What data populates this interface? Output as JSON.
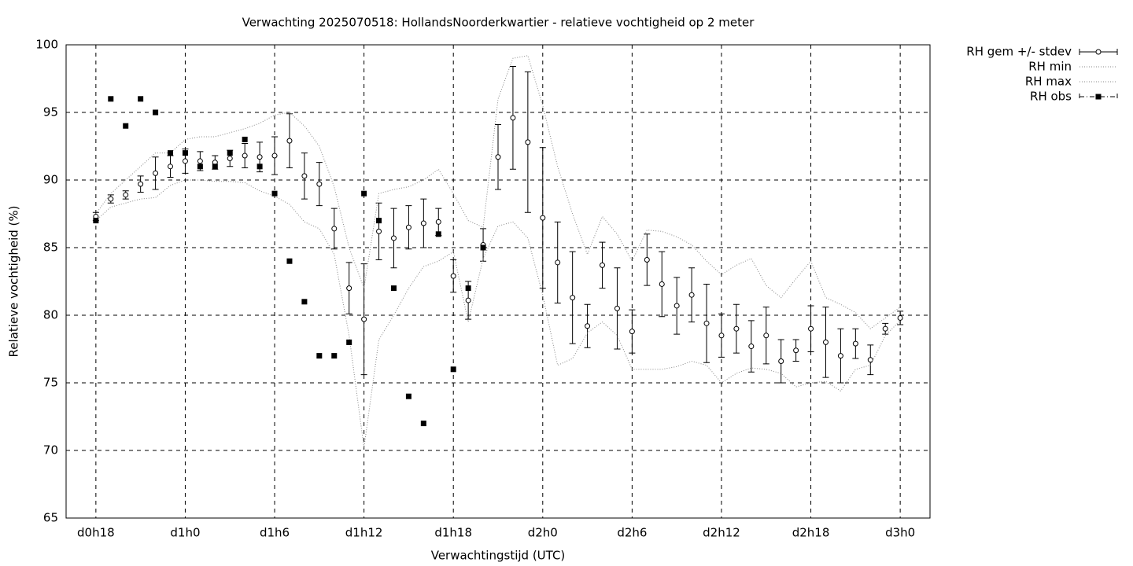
{
  "chart_data": {
    "type": "errorbar",
    "title": "Verwachting 2025070518: HollandsNoorderkwartier - relatieve vochtigheid op 2 meter",
    "x_label": "Verwachtingstijd (UTC)",
    "y_label": "Relatieve vochtigheid (%)",
    "x": [
      18,
      19,
      20,
      21,
      22,
      23,
      24,
      25,
      26,
      27,
      28,
      29,
      30,
      31,
      32,
      33,
      34,
      35,
      36,
      37,
      38,
      39,
      40,
      41,
      42,
      43,
      44,
      45,
      46,
      47,
      48,
      49,
      50,
      51,
      52,
      53,
      54,
      55,
      56,
      57,
      58,
      59,
      60,
      61,
      62,
      63,
      64,
      65,
      66,
      67,
      68,
      69,
      70,
      71,
      72
    ],
    "xlim": [
      16,
      74
    ],
    "xticks": [
      {
        "value": 18,
        "label": "d0h18"
      },
      {
        "value": 24,
        "label": "d1h0"
      },
      {
        "value": 30,
        "label": "d1h6"
      },
      {
        "value": 36,
        "label": "d1h12"
      },
      {
        "value": 42,
        "label": "d1h18"
      },
      {
        "value": 48,
        "label": "d2h0"
      },
      {
        "value": 54,
        "label": "d2h6"
      },
      {
        "value": 60,
        "label": "d2h12"
      },
      {
        "value": 66,
        "label": "d2h18"
      },
      {
        "value": 72,
        "label": "d3h0"
      }
    ],
    "ylim": [
      65,
      100
    ],
    "yticks": [
      65,
      70,
      75,
      80,
      85,
      90,
      95,
      100
    ],
    "grid": true,
    "legend": "outside-top-right",
    "series": [
      {
        "name": "RH gem +/- stdev",
        "style": "errorbar",
        "color": "#000000",
        "values": [
          87.3,
          88.6,
          88.9,
          89.7,
          90.5,
          91.0,
          91.4,
          91.4,
          91.3,
          91.6,
          91.8,
          91.7,
          91.8,
          92.9,
          90.3,
          89.7,
          86.4,
          82.0,
          79.7,
          86.2,
          85.7,
          86.5,
          86.8,
          86.9,
          82.9,
          81.1,
          85.2,
          91.7,
          94.6,
          92.8,
          87.2,
          83.9,
          81.3,
          79.2,
          83.7,
          80.5,
          78.8,
          84.1,
          82.3,
          80.7,
          81.5,
          79.4,
          78.5,
          79.0,
          77.7,
          78.5,
          76.6,
          77.4,
          79.0,
          78.0,
          77.0,
          77.9,
          76.7,
          79.0,
          79.8
        ],
        "errors": [
          0.3,
          0.3,
          0.3,
          0.6,
          1.2,
          0.8,
          0.9,
          0.7,
          0.5,
          0.6,
          0.9,
          1.1,
          1.4,
          2.0,
          1.7,
          1.6,
          1.5,
          1.9,
          4.1,
          2.1,
          2.2,
          1.6,
          1.8,
          1.0,
          1.2,
          1.4,
          1.2,
          2.4,
          3.8,
          5.2,
          5.2,
          3.0,
          3.4,
          1.6,
          1.7,
          3.0,
          1.6,
          1.9,
          2.4,
          2.1,
          2.0,
          2.9,
          1.6,
          1.8,
          1.9,
          2.1,
          1.6,
          0.8,
          1.7,
          2.6,
          2.0,
          1.1,
          1.1,
          0.4,
          0.5
        ]
      },
      {
        "name": "RH min",
        "style": "dotted",
        "color": "#888888",
        "values": [
          87,
          88,
          88.3,
          88.6,
          88.7,
          89.6,
          90,
          90,
          89.9,
          89.9,
          89.8,
          89.2,
          88.8,
          88.2,
          86.9,
          86.4,
          84.5,
          78.5,
          70.2,
          78.2,
          80,
          82,
          83.6,
          84,
          84.7,
          79.5,
          84.2,
          86.6,
          86.9,
          85.7,
          81.5,
          76.3,
          76.8,
          78.7,
          79.5,
          78.5,
          76,
          76,
          76,
          76.2,
          76.6,
          76.3,
          75,
          75.7,
          76.1,
          76,
          75.7,
          74.7,
          75,
          75.1,
          74.4,
          76,
          76.3,
          78.5,
          79.6
        ]
      },
      {
        "name": "RH max",
        "style": "dotted",
        "color": "#888888",
        "values": [
          87.5,
          89,
          90,
          91,
          92,
          92,
          93,
          93.2,
          93.2,
          93.5,
          93.8,
          94.2,
          94.8,
          95,
          94,
          92.5,
          89.5,
          85,
          82,
          89,
          89.3,
          89.5,
          90,
          90.8,
          89,
          87,
          86.5,
          96,
          99,
          99.2,
          95.5,
          91,
          87.5,
          84.5,
          87.3,
          86,
          84,
          86.3,
          86.2,
          85.8,
          85.2,
          84,
          83,
          83.7,
          84.2,
          82.2,
          81.3,
          82.7,
          84,
          81.3,
          80.8,
          80.2,
          79,
          79.8,
          80.6
        ]
      },
      {
        "name": "RH obs",
        "style": "points",
        "color": "#000000",
        "values": [
          87,
          96,
          94,
          96,
          95,
          92,
          92,
          91,
          91,
          92,
          93,
          91,
          89,
          84,
          81,
          77,
          77,
          78,
          89,
          87,
          82,
          74,
          72,
          86,
          76,
          82,
          85,
          null,
          null,
          null,
          null,
          null,
          null,
          null,
          null,
          null,
          null,
          null,
          null,
          null,
          null,
          null,
          null,
          null,
          null,
          null,
          null,
          null,
          null,
          null,
          null,
          null,
          null,
          null,
          null
        ]
      }
    ]
  }
}
